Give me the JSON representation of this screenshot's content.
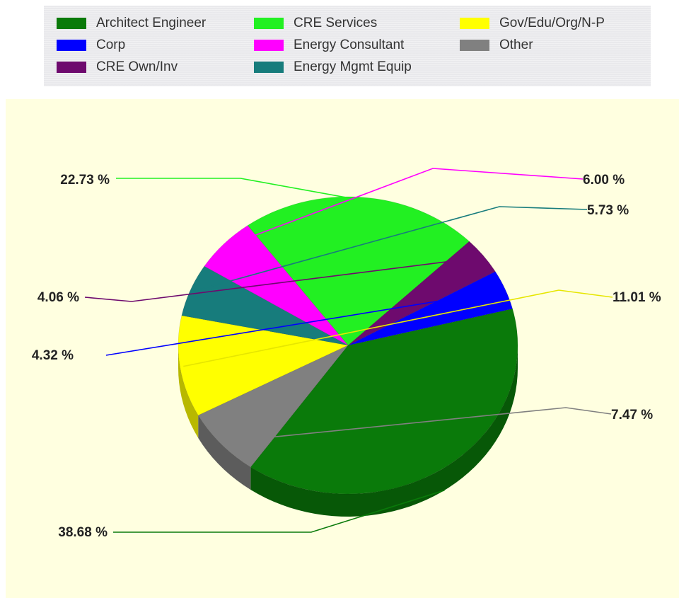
{
  "chart_data": {
    "type": "pie",
    "title": "",
    "legend_position": "top",
    "slices": [
      {
        "name": "Architect Engineer",
        "value": 38.68,
        "label": "38.68 %",
        "color": "#0a7a0a"
      },
      {
        "name": "Corp",
        "value": 4.32,
        "label": "4.32 %",
        "color": "#0000ff"
      },
      {
        "name": "CRE Own/Inv",
        "value": 4.06,
        "label": "4.06 %",
        "color": "#6e0a6e"
      },
      {
        "name": "CRE Services",
        "value": 22.73,
        "label": "22.73 %",
        "color": "#22f022"
      },
      {
        "name": "Energy Consultant",
        "value": 6.0,
        "label": "6.00 %",
        "color": "#ff00ff"
      },
      {
        "name": "Energy Mgmt Equip",
        "value": 5.73,
        "label": "5.73 %",
        "color": "#177c7c"
      },
      {
        "name": "Gov/Edu/Org/N-P",
        "value": 11.01,
        "label": "11.01 %",
        "color": "#ffff00"
      },
      {
        "name": "Other",
        "value": 7.47,
        "label": "7.47 %",
        "color": "#808080"
      }
    ]
  },
  "legend": {
    "items": [
      {
        "label": "Architect Engineer",
        "color": "#0a7a0a"
      },
      {
        "label": "Corp",
        "color": "#0000ff"
      },
      {
        "label": "CRE Own/Inv",
        "color": "#6e0a6e"
      },
      {
        "label": "CRE Services",
        "color": "#22f022"
      },
      {
        "label": "Energy Consultant",
        "color": "#ff00ff"
      },
      {
        "label": "Energy Mgmt Equip",
        "color": "#177c7c"
      },
      {
        "label": "Gov/Edu/Org/N-P",
        "color": "#ffff00"
      },
      {
        "label": "Other",
        "color": "#808080"
      }
    ]
  },
  "colors": {
    "plot_background": "#ffffe0",
    "legend_background": "#e9e9ec"
  }
}
